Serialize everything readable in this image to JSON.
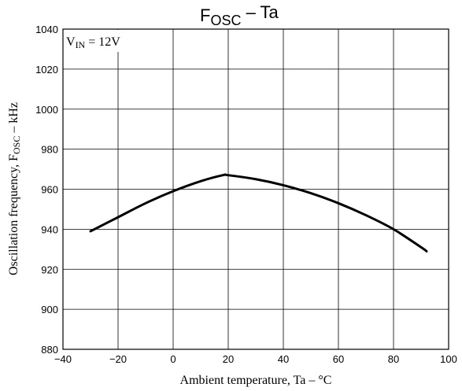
{
  "chart_data": {
    "type": "line",
    "title": {
      "main": "F",
      "sub": "OSC",
      "rest": " – Ta"
    },
    "xlabel": "Ambient temperature, Ta  –  °C",
    "ylabel": {
      "pre": "Oscillation frequency, F",
      "sub": "OSC",
      "post": "  –  kHz"
    },
    "annotation": {
      "pre": "V",
      "sub": "IN",
      "post": " = 12V"
    },
    "xlim": [
      -40,
      100
    ],
    "ylim": [
      880,
      1040
    ],
    "xticks": [
      -40,
      -20,
      0,
      20,
      40,
      60,
      80,
      100
    ],
    "yticks": [
      880,
      900,
      920,
      940,
      960,
      980,
      1000,
      1020,
      1040
    ],
    "grid": true,
    "series": [
      {
        "x": [
          -30,
          -20,
          -10,
          0,
          10,
          18,
          20,
          30,
          40,
          50,
          60,
          70,
          80,
          90,
          92
        ],
        "y": [
          939,
          946,
          953,
          959,
          964,
          967,
          967,
          965,
          962,
          958,
          953,
          947,
          940,
          931,
          929
        ]
      }
    ]
  }
}
